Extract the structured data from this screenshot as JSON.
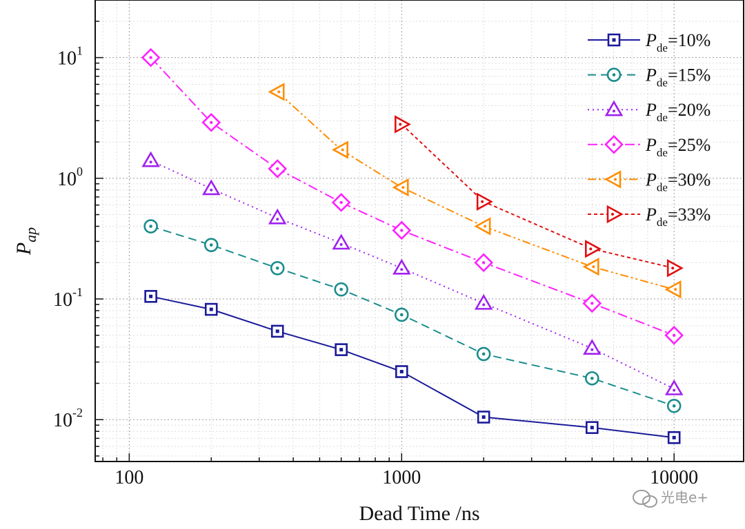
{
  "chart_data": {
    "type": "line",
    "xscale": "log",
    "yscale": "log",
    "xlabel": "Dead Time /ns",
    "ylabel_base": "P",
    "ylabel_sub": "ap",
    "xlim": [
      75,
      18000
    ],
    "ylim": [
      0.0045,
      30
    ],
    "x_ticks": [
      {
        "value": 100,
        "label": "100"
      },
      {
        "value": 1000,
        "label": "1000"
      },
      {
        "value": 10000,
        "label": "10000"
      }
    ],
    "y_ticks": [
      {
        "value": 0.01,
        "base": "10",
        "exp": "-2"
      },
      {
        "value": 0.1,
        "base": "10",
        "exp": "-1"
      },
      {
        "value": 1,
        "base": "10",
        "exp": "0"
      },
      {
        "value": 10,
        "base": "10",
        "exp": "1"
      }
    ],
    "grid": true,
    "legend_position": "top-right",
    "series": [
      {
        "name_base": "P",
        "name_sub": "de",
        "name_value": "=10%",
        "color": "#1a1a9a",
        "marker": "square",
        "dash": "solid",
        "x": [
          120,
          200,
          350,
          600,
          1000,
          2000,
          5000,
          10000
        ],
        "y": [
          0.105,
          0.082,
          0.054,
          0.038,
          0.025,
          0.0105,
          0.0086,
          0.0071
        ]
      },
      {
        "name_base": "P",
        "name_sub": "de",
        "name_value": "=15%",
        "color": "#1a8c8c",
        "marker": "circle",
        "dash": "dashed",
        "x": [
          120,
          200,
          350,
          600,
          1000,
          2000,
          5000,
          10000
        ],
        "y": [
          0.4,
          0.28,
          0.18,
          0.12,
          0.074,
          0.035,
          0.022,
          0.013
        ]
      },
      {
        "name_base": "P",
        "name_sub": "de",
        "name_value": "=20%",
        "color": "#a020f0",
        "marker": "triangle-up",
        "dash": "dotted",
        "x": [
          120,
          200,
          350,
          600,
          1000,
          2000,
          5000,
          10000
        ],
        "y": [
          1.4,
          0.82,
          0.47,
          0.29,
          0.18,
          0.092,
          0.039,
          0.018
        ]
      },
      {
        "name_base": "P",
        "name_sub": "de",
        "name_value": "=25%",
        "color": "#ff20ff",
        "marker": "diamond",
        "dash": "dashdot",
        "x": [
          120,
          200,
          350,
          600,
          1000,
          2000,
          5000,
          10000
        ],
        "y": [
          10,
          2.9,
          1.2,
          0.63,
          0.37,
          0.2,
          0.092,
          0.05
        ]
      },
      {
        "name_base": "P",
        "name_sub": "de",
        "name_value": "=30%",
        "color": "#ff8c00",
        "marker": "triangle-left",
        "dash": "dashdotdot",
        "x": [
          350,
          600,
          1000,
          2000,
          5000,
          10000
        ],
        "y": [
          5.2,
          1.72,
          0.84,
          0.4,
          0.185,
          0.12
        ]
      },
      {
        "name_base": "P",
        "name_sub": "de",
        "name_value": "=33%",
        "color": "#e01010",
        "marker": "triangle-right",
        "dash": "shortdash",
        "x": [
          1000,
          2000,
          5000,
          10000
        ],
        "y": [
          2.8,
          0.64,
          0.26,
          0.18
        ]
      }
    ]
  },
  "watermark": "光电e+"
}
